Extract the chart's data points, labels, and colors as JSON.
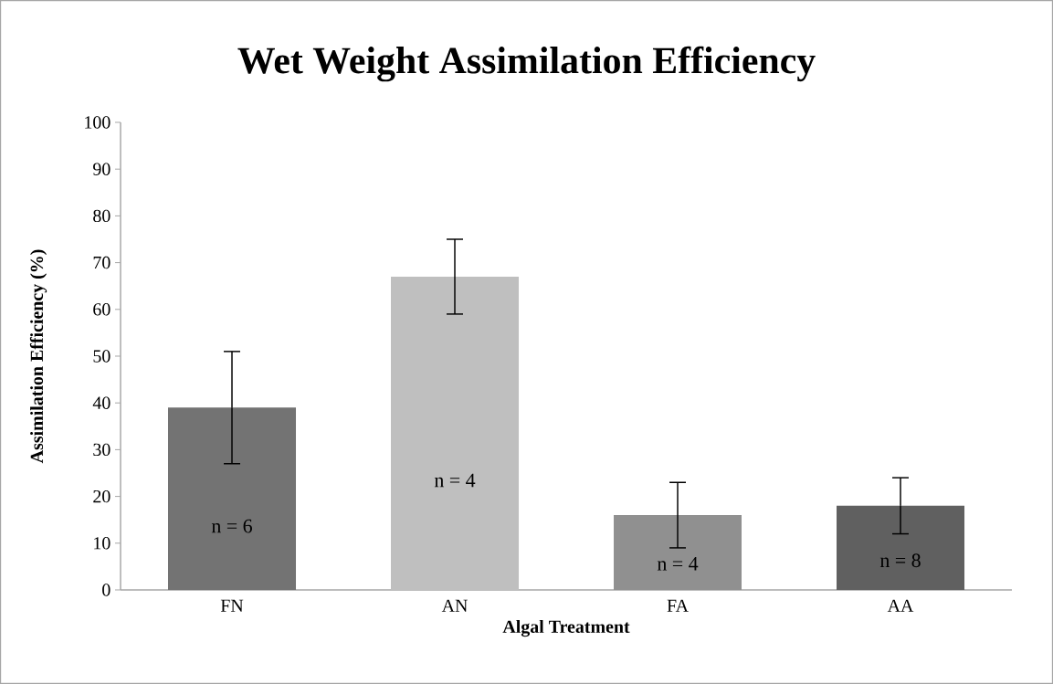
{
  "chart_data": {
    "type": "bar",
    "title": "Wet Weight Assimilation Efficiency",
    "xlabel": "Algal Treatment",
    "ylabel": "Assimilation Efficiency (%)",
    "categories": [
      "FN",
      "AN",
      "FA",
      "AA"
    ],
    "values": [
      39,
      67,
      16,
      18
    ],
    "errors": [
      12,
      8,
      7,
      6
    ],
    "colors": [
      "#737373",
      "#bfbfbf",
      "#909090",
      "#606060"
    ],
    "ylim": [
      0,
      100
    ],
    "yticks": [
      0,
      10,
      20,
      30,
      40,
      50,
      60,
      70,
      80,
      90,
      100
    ],
    "grid": false,
    "annotations": [
      "n = 6",
      "n = 4",
      "n = 4",
      "n = 8"
    ]
  }
}
